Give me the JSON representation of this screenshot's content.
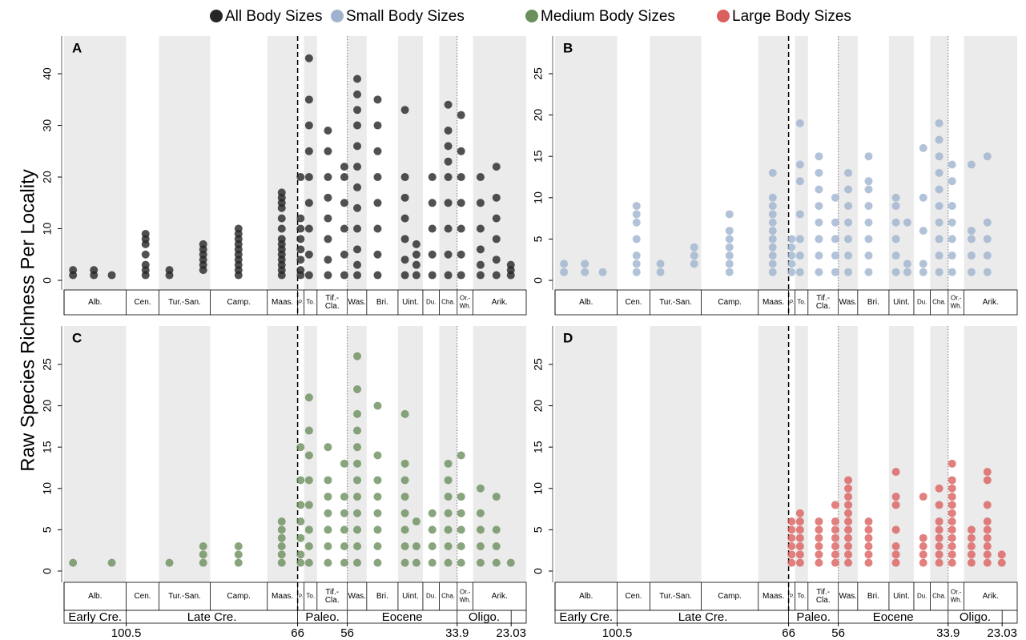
{
  "chart_data": [
    {
      "type": "scatter",
      "panel_label": "A",
      "xlim": [
        113,
        20
      ],
      "ylim": [
        -1.86,
        47.3
      ],
      "yticks": [
        0,
        10,
        20,
        30,
        40
      ],
      "series": [
        {
          "name": "All Body Sizes",
          "color": "#262626",
          "x": [
            111.2,
            107,
            103.4,
            96.6,
            91.8,
            85,
            77.9,
            69.2,
            65.4,
            63.7,
            59.9,
            56.6,
            54,
            49.9,
            44.4,
            42.1,
            38.9,
            35.7,
            33.1,
            29.2,
            26,
            23.1
          ],
          "values": [
            [
              1,
              2
            ],
            [
              1,
              2
            ],
            [
              1
            ],
            [
              1,
              2,
              3,
              5,
              7,
              8,
              9
            ],
            [
              1,
              2
            ],
            [
              2,
              3,
              4,
              5,
              6,
              7
            ],
            [
              1,
              2,
              3,
              4,
              5,
              6,
              7,
              8,
              9,
              10
            ],
            [
              1,
              2,
              3,
              4,
              5,
              6,
              7,
              8,
              10,
              12,
              14,
              15,
              16,
              17
            ],
            [
              1,
              2,
              4,
              6,
              8,
              10,
              12,
              20
            ],
            [
              1,
              5,
              10,
              15,
              20,
              25,
              30,
              35,
              43
            ],
            [
              1,
              4,
              8,
              12,
              16,
              20,
              25,
              29
            ],
            [
              1,
              5,
              10,
              15,
              20,
              22
            ],
            [
              1,
              3,
              6,
              10,
              14,
              18,
              22,
              26,
              30,
              33,
              36,
              39
            ],
            [
              1,
              5,
              10,
              15,
              20,
              25,
              30,
              35
            ],
            [
              1,
              4,
              8,
              12,
              16,
              20,
              33
            ],
            [
              1,
              3,
              5,
              7
            ],
            [
              1,
              5,
              10,
              15,
              20
            ],
            [
              1,
              5,
              10,
              15,
              20,
              23,
              26,
              29,
              34
            ],
            [
              1,
              5,
              10,
              15,
              20,
              25,
              32
            ],
            [
              1,
              3,
              6,
              10,
              15,
              20
            ],
            [
              1,
              4,
              8,
              12,
              16,
              22
            ],
            [
              1,
              2,
              3
            ]
          ]
        }
      ]
    },
    {
      "type": "scatter",
      "panel_label": "B",
      "xlim": [
        113,
        20
      ],
      "ylim": [
        -1.16,
        29.55
      ],
      "yticks": [
        0,
        5,
        10,
        15,
        20,
        25
      ],
      "series": [
        {
          "name": "Small Body Sizes",
          "color": "#9fb3cf",
          "x": [
            111.2,
            107,
            103.4,
            96.6,
            91.8,
            85,
            77.9,
            69.2,
            65.4,
            63.7,
            59.9,
            56.6,
            54,
            49.9,
            44.4,
            42.1,
            38.9,
            35.7,
            33.1,
            29.2,
            26
          ],
          "values": [
            [
              1,
              2
            ],
            [
              1,
              2
            ],
            [
              1
            ],
            [
              1,
              2,
              3,
              5,
              7,
              8,
              9
            ],
            [
              1,
              2
            ],
            [
              2,
              3,
              4
            ],
            [
              1,
              2,
              3,
              4,
              5,
              6,
              8
            ],
            [
              1,
              2,
              3,
              4,
              5,
              6,
              7,
              8,
              9,
              10,
              13
            ],
            [
              1,
              2,
              3,
              4,
              5
            ],
            [
              1,
              3,
              5,
              8,
              12,
              14,
              19
            ],
            [
              1,
              3,
              5,
              7,
              9,
              11,
              13,
              15
            ],
            [
              1,
              3,
              5,
              7,
              10
            ],
            [
              1,
              3,
              5,
              7,
              9,
              11,
              13
            ],
            [
              1,
              3,
              5,
              7,
              9,
              11,
              12,
              15
            ],
            [
              1,
              3,
              5,
              7,
              9,
              10
            ],
            [
              1,
              2,
              7
            ],
            [
              1,
              2,
              6,
              10,
              16
            ],
            [
              1,
              3,
              5,
              7,
              9,
              11,
              13,
              15,
              17,
              19
            ],
            [
              1,
              3,
              5,
              7,
              9,
              12,
              14
            ],
            [
              1,
              3,
              5,
              6,
              14
            ],
            [
              1,
              3,
              5,
              7,
              15
            ]
          ]
        }
      ]
    },
    {
      "type": "scatter",
      "panel_label": "C",
      "xlim": [
        113,
        20
      ],
      "ylim": [
        -1.36,
        29.65
      ],
      "yticks": [
        0,
        5,
        10,
        15,
        20,
        25
      ],
      "xticks": [
        100.5,
        66,
        56,
        33.9,
        23.03
      ],
      "epoch_row": true,
      "series": [
        {
          "name": "Medium Body Sizes",
          "color": "#6b8f5c",
          "x": [
            111.2,
            103.4,
            91.8,
            85,
            77.9,
            69.2,
            65.4,
            63.7,
            59.9,
            56.6,
            54,
            49.9,
            44.4,
            42.1,
            38.9,
            35.7,
            33.1,
            29.2,
            26,
            23.1
          ],
          "values": [
            [
              1
            ],
            [
              1
            ],
            [
              1
            ],
            [
              1,
              2,
              3
            ],
            [
              1,
              2,
              3
            ],
            [
              1,
              2,
              3,
              4,
              5,
              6
            ],
            [
              1,
              2,
              4,
              6,
              8,
              11,
              15
            ],
            [
              1,
              3,
              5,
              8,
              11,
              14,
              17,
              21
            ],
            [
              1,
              3,
              5,
              7,
              9,
              11,
              15
            ],
            [
              1,
              3,
              5,
              7,
              9,
              13
            ],
            [
              1,
              3,
              5,
              7,
              9,
              11,
              13,
              15,
              17,
              19,
              22,
              26
            ],
            [
              1,
              3,
              5,
              7,
              9,
              11,
              14,
              20
            ],
            [
              1,
              3,
              5,
              7,
              9,
              11,
              13,
              19
            ],
            [
              1,
              3,
              6
            ],
            [
              1,
              3,
              5,
              7
            ],
            [
              1,
              3,
              5,
              7,
              9,
              11,
              13
            ],
            [
              1,
              3,
              5,
              7,
              9,
              14
            ],
            [
              1,
              3,
              5,
              7,
              10
            ],
            [
              1,
              3,
              5,
              9
            ],
            [
              1
            ]
          ]
        }
      ]
    },
    {
      "type": "scatter",
      "panel_label": "D",
      "xlim": [
        113,
        20
      ],
      "ylim": [
        -1.36,
        29.65
      ],
      "yticks": [
        0,
        5,
        10,
        15,
        20,
        25
      ],
      "xticks": [
        100.5,
        66,
        56,
        33.9,
        23.03
      ],
      "epoch_row": true,
      "series": [
        {
          "name": "Large Body Sizes",
          "color": "#d9605f",
          "x": [
            65.4,
            63.7,
            59.9,
            56.6,
            54,
            49.9,
            44.4,
            38.9,
            35.7,
            33.1,
            29.2,
            26,
            23.1
          ],
          "values": [
            [
              1,
              2,
              3,
              4,
              5,
              6
            ],
            [
              1,
              2,
              3,
              4,
              5,
              6,
              7
            ],
            [
              1,
              2,
              3,
              4,
              5,
              6
            ],
            [
              1,
              2,
              3,
              4,
              5,
              6,
              8
            ],
            [
              1,
              2,
              3,
              4,
              5,
              6,
              7,
              8,
              9,
              10,
              11
            ],
            [
              1,
              2,
              3,
              4,
              5,
              6
            ],
            [
              1,
              2,
              3,
              5,
              8,
              9,
              12
            ],
            [
              1,
              2,
              3,
              4,
              9
            ],
            [
              1,
              2,
              3,
              4,
              5,
              6,
              8,
              10
            ],
            [
              1,
              2,
              3,
              4,
              5,
              6,
              7,
              8,
              9,
              10,
              11,
              13
            ],
            [
              1,
              2,
              3,
              4,
              5
            ],
            [
              1,
              2,
              3,
              4,
              5,
              6,
              8,
              11,
              12
            ],
            [
              1,
              2
            ]
          ]
        }
      ]
    }
  ],
  "y_label": "Raw Species Richness Per Locality",
  "stages": [
    {
      "label": [
        "Alb."
      ],
      "start": 113,
      "end": 100.5,
      "shaded": true
    },
    {
      "label": [
        "Cen."
      ],
      "start": 100.5,
      "end": 93.9,
      "shaded": false
    },
    {
      "label": [
        "Tur.-San."
      ],
      "start": 93.9,
      "end": 83.6,
      "shaded": true
    },
    {
      "label": [
        "Camp."
      ],
      "start": 83.6,
      "end": 72.1,
      "shaded": false
    },
    {
      "label": [
        "Maas."
      ],
      "start": 72.1,
      "end": 66,
      "shaded": true
    },
    {
      "label": [
        "P."
      ],
      "start": 66,
      "end": 64.7,
      "shaded": false
    },
    {
      "label": [
        "To."
      ],
      "start": 64.7,
      "end": 62.1,
      "shaded": true
    },
    {
      "label": [
        "Tif.-",
        "Cla."
      ],
      "start": 62.1,
      "end": 56,
      "shaded": false
    },
    {
      "label": [
        "Was."
      ],
      "start": 56,
      "end": 52.1,
      "shaded": true
    },
    {
      "label": [
        "Bri."
      ],
      "start": 52.1,
      "end": 45.8,
      "shaded": false
    },
    {
      "label": [
        "Uint."
      ],
      "start": 45.8,
      "end": 40.8,
      "shaded": true
    },
    {
      "label": [
        "Du."
      ],
      "start": 40.8,
      "end": 37.5,
      "shaded": false
    },
    {
      "label": [
        "Cha."
      ],
      "start": 37.5,
      "end": 33.9,
      "shaded": true
    },
    {
      "label": [
        "Or.-",
        "Wh."
      ],
      "start": 33.9,
      "end": 30.7,
      "shaded": false
    },
    {
      "label": [
        "Arik."
      ],
      "start": 30.7,
      "end": 20,
      "shaded": true
    }
  ],
  "epochs": [
    {
      "label": "Early Cre.",
      "start": 113,
      "end": 100.5
    },
    {
      "label": "Late Cre.",
      "start": 100.5,
      "end": 66
    },
    {
      "label": "Paleo.",
      "start": 66,
      "end": 56
    },
    {
      "label": "Eocene",
      "start": 56,
      "end": 33.9
    },
    {
      "label": "Oligo.",
      "start": 33.9,
      "end": 23.03
    }
  ],
  "boundaries": [
    {
      "value": 66,
      "style": "dashed"
    },
    {
      "value": 56,
      "style": "dotted"
    },
    {
      "value": 33.9,
      "style": "dotted"
    }
  ]
}
